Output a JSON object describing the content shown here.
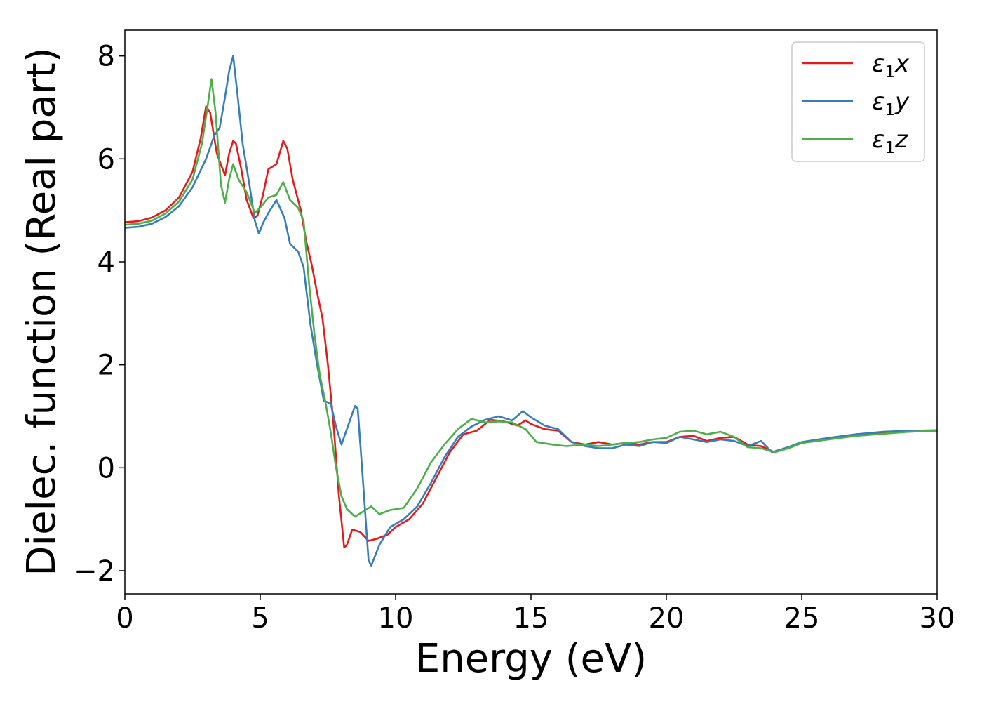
{
  "chart_data": {
    "type": "line",
    "xlabel": "Energy (eV)",
    "ylabel": "Dielec. function (Real part)",
    "xlim": [
      0,
      30
    ],
    "ylim": [
      -2.45,
      8.5
    ],
    "xticks": [
      "0",
      "5",
      "10",
      "15",
      "20",
      "25",
      "30"
    ],
    "yticks": [
      "−2",
      "0",
      "2",
      "4",
      "6",
      "8"
    ],
    "grid": false,
    "legend_position": "top-right",
    "series": [
      {
        "name_base": "ε",
        "name_sub": "1",
        "name_tail": "x",
        "color": "#e41a1c",
        "points": [
          [
            0,
            4.77
          ],
          [
            0.5,
            4.79
          ],
          [
            1.0,
            4.86
          ],
          [
            1.5,
            5.0
          ],
          [
            2.0,
            5.25
          ],
          [
            2.5,
            5.75
          ],
          [
            2.8,
            6.4
          ],
          [
            3.0,
            7.02
          ],
          [
            3.15,
            6.9
          ],
          [
            3.4,
            6.1
          ],
          [
            3.7,
            5.68
          ],
          [
            3.85,
            6.1
          ],
          [
            4.0,
            6.35
          ],
          [
            4.1,
            6.3
          ],
          [
            4.3,
            5.8
          ],
          [
            4.5,
            5.2
          ],
          [
            4.75,
            4.85
          ],
          [
            4.9,
            4.9
          ],
          [
            5.1,
            5.3
          ],
          [
            5.3,
            5.8
          ],
          [
            5.6,
            5.9
          ],
          [
            5.85,
            6.35
          ],
          [
            6.0,
            6.2
          ],
          [
            6.2,
            5.6
          ],
          [
            6.5,
            5.0
          ],
          [
            6.7,
            4.4
          ],
          [
            6.9,
            3.95
          ],
          [
            7.1,
            3.4
          ],
          [
            7.3,
            2.9
          ],
          [
            7.5,
            2.0
          ],
          [
            7.7,
            0.9
          ],
          [
            7.9,
            -0.5
          ],
          [
            8.1,
            -1.55
          ],
          [
            8.2,
            -1.5
          ],
          [
            8.4,
            -1.2
          ],
          [
            8.7,
            -1.25
          ],
          [
            9.0,
            -1.42
          ],
          [
            9.3,
            -1.38
          ],
          [
            9.7,
            -1.3
          ],
          [
            10.0,
            -1.15
          ],
          [
            10.5,
            -1.0
          ],
          [
            11.0,
            -0.7
          ],
          [
            11.5,
            -0.2
          ],
          [
            12.0,
            0.3
          ],
          [
            12.5,
            0.65
          ],
          [
            13.0,
            0.72
          ],
          [
            13.5,
            0.93
          ],
          [
            14.0,
            0.9
          ],
          [
            14.5,
            0.82
          ],
          [
            14.8,
            0.92
          ],
          [
            15.0,
            0.85
          ],
          [
            15.5,
            0.75
          ],
          [
            16.0,
            0.72
          ],
          [
            16.5,
            0.5
          ],
          [
            17.0,
            0.45
          ],
          [
            17.5,
            0.5
          ],
          [
            18.0,
            0.45
          ],
          [
            18.5,
            0.48
          ],
          [
            19.0,
            0.45
          ],
          [
            19.5,
            0.5
          ],
          [
            20.0,
            0.5
          ],
          [
            20.5,
            0.6
          ],
          [
            21.0,
            0.62
          ],
          [
            21.5,
            0.52
          ],
          [
            22.0,
            0.58
          ],
          [
            22.5,
            0.6
          ],
          [
            23.0,
            0.45
          ],
          [
            23.5,
            0.42
          ],
          [
            24.0,
            0.3
          ],
          [
            24.5,
            0.38
          ],
          [
            25.0,
            0.48
          ],
          [
            26.0,
            0.58
          ],
          [
            27.0,
            0.65
          ],
          [
            28.0,
            0.68
          ],
          [
            29.0,
            0.7
          ],
          [
            30.0,
            0.72
          ]
        ]
      },
      {
        "name_base": "ε",
        "name_sub": "1",
        "name_tail": "y",
        "color": "#377eb8",
        "points": [
          [
            0,
            4.66
          ],
          [
            0.5,
            4.68
          ],
          [
            1.0,
            4.74
          ],
          [
            1.5,
            4.87
          ],
          [
            2.0,
            5.08
          ],
          [
            2.5,
            5.45
          ],
          [
            3.0,
            6.0
          ],
          [
            3.3,
            6.45
          ],
          [
            3.5,
            6.6
          ],
          [
            3.7,
            7.2
          ],
          [
            3.85,
            7.7
          ],
          [
            4.0,
            8.0
          ],
          [
            4.15,
            7.3
          ],
          [
            4.35,
            6.3
          ],
          [
            4.6,
            5.5
          ],
          [
            4.8,
            4.8
          ],
          [
            4.95,
            4.55
          ],
          [
            5.1,
            4.75
          ],
          [
            5.3,
            4.95
          ],
          [
            5.6,
            5.2
          ],
          [
            5.9,
            4.85
          ],
          [
            6.1,
            4.35
          ],
          [
            6.4,
            4.2
          ],
          [
            6.6,
            3.9
          ],
          [
            6.85,
            2.8
          ],
          [
            7.1,
            2.0
          ],
          [
            7.35,
            1.3
          ],
          [
            7.6,
            1.25
          ],
          [
            7.8,
            0.8
          ],
          [
            8.0,
            0.45
          ],
          [
            8.2,
            0.75
          ],
          [
            8.5,
            1.2
          ],
          [
            8.6,
            1.15
          ],
          [
            8.8,
            -0.3
          ],
          [
            9.0,
            -1.8
          ],
          [
            9.1,
            -1.9
          ],
          [
            9.4,
            -1.5
          ],
          [
            9.8,
            -1.15
          ],
          [
            10.3,
            -1.0
          ],
          [
            10.8,
            -0.75
          ],
          [
            11.3,
            -0.3
          ],
          [
            11.8,
            0.2
          ],
          [
            12.3,
            0.6
          ],
          [
            12.8,
            0.8
          ],
          [
            13.3,
            0.93
          ],
          [
            13.8,
            1.0
          ],
          [
            14.3,
            0.92
          ],
          [
            14.7,
            1.1
          ],
          [
            15.0,
            0.98
          ],
          [
            15.5,
            0.82
          ],
          [
            16.0,
            0.75
          ],
          [
            16.5,
            0.5
          ],
          [
            17.0,
            0.42
          ],
          [
            17.5,
            0.38
          ],
          [
            18.0,
            0.38
          ],
          [
            18.5,
            0.45
          ],
          [
            19.0,
            0.42
          ],
          [
            19.5,
            0.5
          ],
          [
            20.0,
            0.48
          ],
          [
            20.5,
            0.6
          ],
          [
            21.0,
            0.55
          ],
          [
            21.5,
            0.5
          ],
          [
            22.0,
            0.55
          ],
          [
            22.5,
            0.52
          ],
          [
            23.0,
            0.42
          ],
          [
            23.5,
            0.52
          ],
          [
            23.9,
            0.3
          ],
          [
            24.5,
            0.4
          ],
          [
            25.0,
            0.5
          ],
          [
            26.0,
            0.58
          ],
          [
            27.0,
            0.65
          ],
          [
            28.0,
            0.7
          ],
          [
            29.0,
            0.72
          ],
          [
            30.0,
            0.73
          ]
        ]
      },
      {
        "name_base": "ε",
        "name_sub": "1",
        "name_tail": "z",
        "color": "#4daf4a",
        "points": [
          [
            0,
            4.72
          ],
          [
            0.5,
            4.74
          ],
          [
            1.0,
            4.8
          ],
          [
            1.5,
            4.94
          ],
          [
            2.0,
            5.17
          ],
          [
            2.5,
            5.6
          ],
          [
            2.85,
            6.3
          ],
          [
            3.05,
            7.0
          ],
          [
            3.2,
            7.55
          ],
          [
            3.35,
            6.9
          ],
          [
            3.55,
            5.5
          ],
          [
            3.7,
            5.15
          ],
          [
            3.85,
            5.6
          ],
          [
            4.0,
            5.9
          ],
          [
            4.2,
            5.6
          ],
          [
            4.5,
            5.35
          ],
          [
            4.8,
            4.95
          ],
          [
            5.0,
            5.05
          ],
          [
            5.3,
            5.25
          ],
          [
            5.6,
            5.3
          ],
          [
            5.85,
            5.55
          ],
          [
            6.1,
            5.2
          ],
          [
            6.4,
            5.05
          ],
          [
            6.6,
            4.8
          ],
          [
            6.8,
            3.6
          ],
          [
            7.0,
            2.6
          ],
          [
            7.2,
            1.8
          ],
          [
            7.4,
            1.3
          ],
          [
            7.6,
            0.7
          ],
          [
            7.8,
            0.0
          ],
          [
            8.0,
            -0.55
          ],
          [
            8.2,
            -0.8
          ],
          [
            8.5,
            -0.95
          ],
          [
            8.8,
            -0.85
          ],
          [
            9.1,
            -0.75
          ],
          [
            9.4,
            -0.9
          ],
          [
            9.8,
            -0.82
          ],
          [
            10.3,
            -0.78
          ],
          [
            10.8,
            -0.4
          ],
          [
            11.3,
            0.1
          ],
          [
            11.8,
            0.45
          ],
          [
            12.3,
            0.75
          ],
          [
            12.8,
            0.95
          ],
          [
            13.3,
            0.88
          ],
          [
            13.8,
            0.9
          ],
          [
            14.3,
            0.88
          ],
          [
            14.8,
            0.75
          ],
          [
            15.2,
            0.5
          ],
          [
            15.8,
            0.45
          ],
          [
            16.3,
            0.42
          ],
          [
            17.0,
            0.45
          ],
          [
            17.5,
            0.42
          ],
          [
            18.0,
            0.45
          ],
          [
            18.5,
            0.48
          ],
          [
            19.0,
            0.5
          ],
          [
            19.5,
            0.55
          ],
          [
            20.0,
            0.58
          ],
          [
            20.5,
            0.7
          ],
          [
            21.0,
            0.72
          ],
          [
            21.5,
            0.65
          ],
          [
            22.0,
            0.7
          ],
          [
            22.5,
            0.6
          ],
          [
            23.0,
            0.4
          ],
          [
            23.5,
            0.38
          ],
          [
            24.0,
            0.3
          ],
          [
            24.5,
            0.38
          ],
          [
            25.0,
            0.48
          ],
          [
            26.0,
            0.55
          ],
          [
            27.0,
            0.62
          ],
          [
            28.0,
            0.66
          ],
          [
            29.0,
            0.7
          ],
          [
            30.0,
            0.72
          ]
        ]
      }
    ]
  }
}
